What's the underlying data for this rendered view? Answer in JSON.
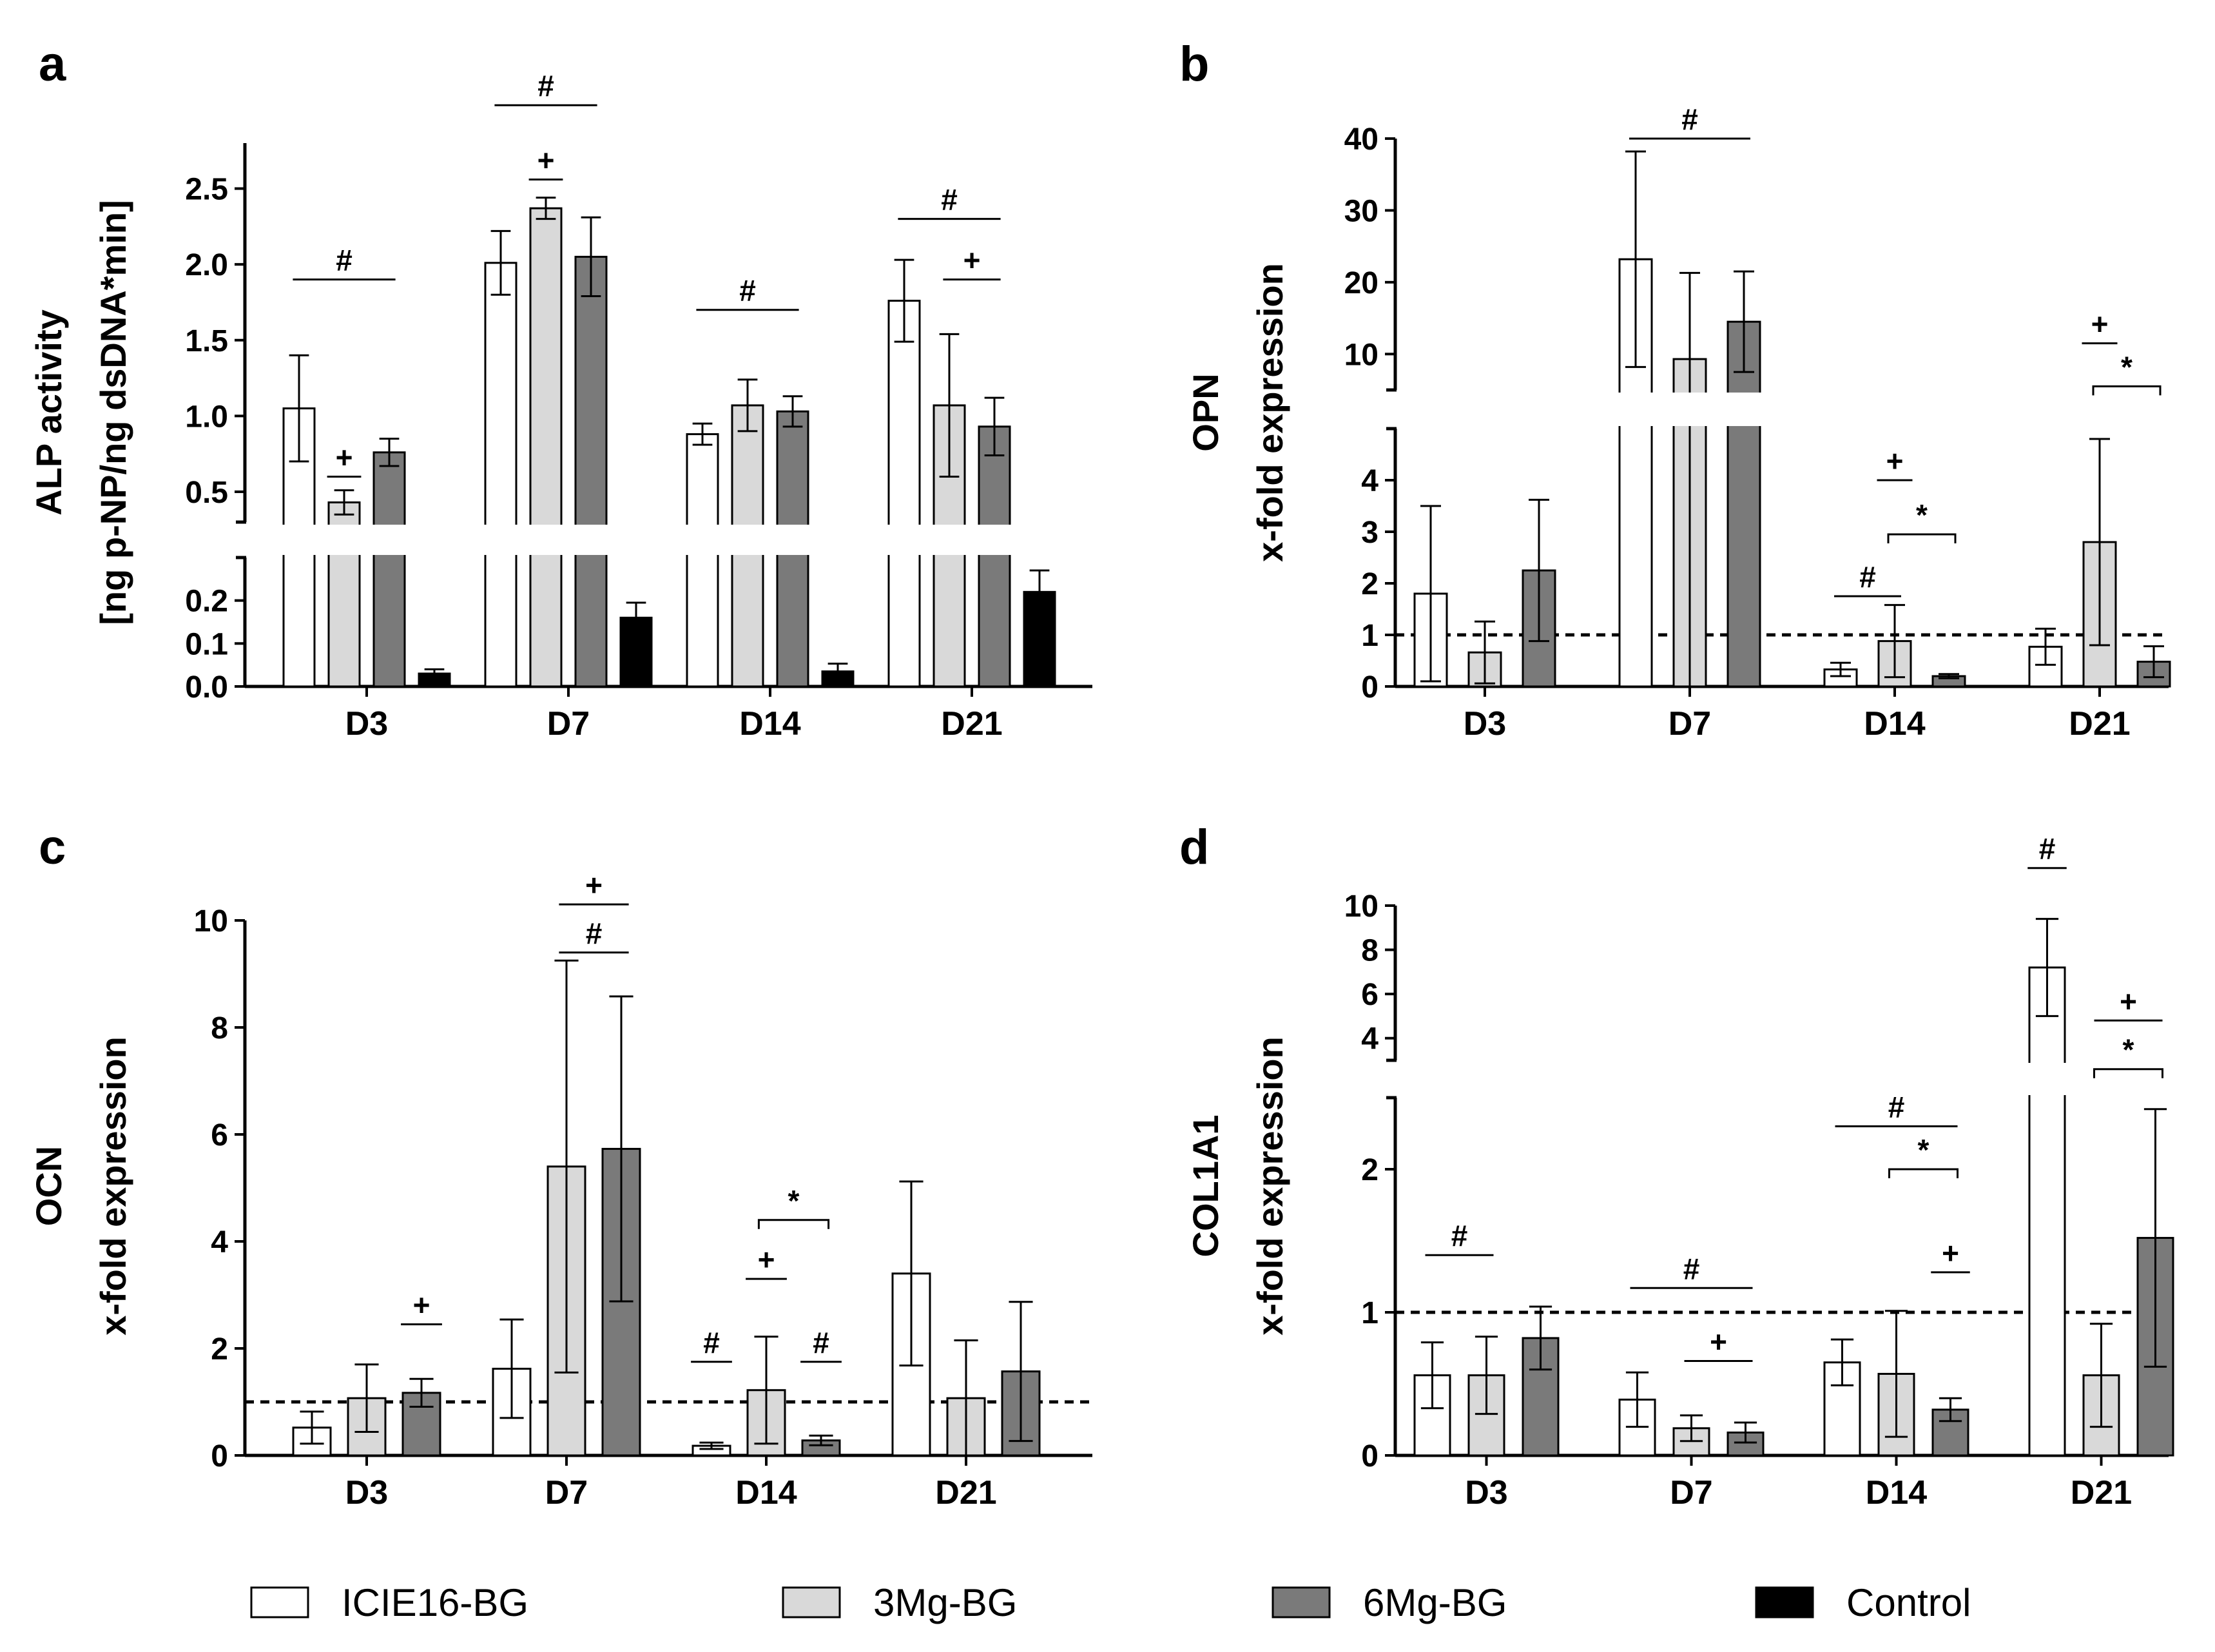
{
  "colors": {
    "ICIE16-BG": "#ffffff",
    "3Mg-BG": "#d9d9d9",
    "6Mg-BG": "#7a7a7a",
    "Control": "#000000"
  },
  "legend": [
    {
      "label": "ICIE16-BG",
      "color": "#ffffff"
    },
    {
      "label": "3Mg-BG",
      "color": "#d9d9d9"
    },
    {
      "label": "6Mg-BG",
      "color": "#7a7a7a"
    },
    {
      "label": "Control",
      "color": "#000000"
    }
  ],
  "chart_data": [
    {
      "panel": "a",
      "type": "bar",
      "ylabel_lines": [
        "ALP activity",
        "[ng p-NP/ng dsDNA*min]"
      ],
      "categories": [
        "D3",
        "D7",
        "D14",
        "D21"
      ],
      "series": [
        {
          "name": "ICIE16-BG",
          "values": [
            1.05,
            2.01,
            0.88,
            1.76
          ],
          "errors": [
            0.35,
            0.21,
            0.07,
            0.27
          ]
        },
        {
          "name": "3Mg-BG",
          "values": [
            0.43,
            2.37,
            1.07,
            1.07
          ],
          "errors": [
            0.08,
            0.07,
            0.17,
            0.47
          ]
        },
        {
          "name": "6Mg-BG",
          "values": [
            0.76,
            2.05,
            1.03,
            0.93
          ],
          "errors": [
            0.09,
            0.26,
            0.1,
            0.19
          ]
        },
        {
          "name": "Control",
          "values": [
            0.03,
            0.16,
            0.035,
            0.22
          ],
          "errors": [
            0.01,
            0.035,
            0.018,
            0.05
          ]
        }
      ],
      "y_break": {
        "lower_range": [
          0,
          0.3
        ],
        "upper_range": [
          0.3,
          2.8
        ]
      },
      "yticks_lower": [
        {
          "value": 0.0,
          "label": "0.0"
        },
        {
          "value": 0.1,
          "label": "0.1"
        },
        {
          "value": 0.2,
          "label": "0.2"
        }
      ],
      "yticks_upper": [
        {
          "value": 0.5,
          "label": "0.5"
        },
        {
          "value": 1.0,
          "label": "1.0"
        },
        {
          "value": 1.5,
          "label": "1.5"
        },
        {
          "value": 2.0,
          "label": "2.0"
        },
        {
          "value": 2.5,
          "label": "2.5"
        }
      ],
      "annotations": [
        {
          "symbol": "#",
          "cat": 0,
          "from": 0,
          "to": 2,
          "y": 1.9
        },
        {
          "symbol": "+",
          "cat": 0,
          "from": 1,
          "to": 1,
          "y": 0.6
        },
        {
          "symbol": "#",
          "cat": 1,
          "from": 0,
          "to": 2,
          "y": 3.05
        },
        {
          "symbol": "+",
          "cat": 1,
          "from": 1,
          "to": 1,
          "y": 2.56
        },
        {
          "symbol": "#",
          "cat": 2,
          "from": 0,
          "to": 2,
          "y": 1.7
        },
        {
          "symbol": "#",
          "cat": 3,
          "from": 0,
          "to": 2,
          "y": 2.3
        },
        {
          "symbol": "+",
          "cat": 3,
          "from": 1,
          "to": 2,
          "y": 1.9
        }
      ]
    },
    {
      "panel": "b",
      "type": "bar",
      "ylabel_lines": [
        "OPN",
        "x-fold expression"
      ],
      "categories": [
        "D3",
        "D7",
        "D14",
        "D21"
      ],
      "series": [
        {
          "name": "ICIE16-BG",
          "values": [
            1.8,
            23.2,
            0.33,
            0.77
          ],
          "errors": [
            1.7,
            15,
            0.13,
            0.35
          ]
        },
        {
          "name": "3Mg-BG",
          "values": [
            0.66,
            9.3,
            0.88,
            2.8
          ],
          "errors": [
            0.6,
            12,
            0.7,
            2.0
          ]
        },
        {
          "name": "6Mg-BG",
          "values": [
            2.25,
            14.5,
            0.2,
            0.48
          ],
          "errors": [
            1.37,
            7,
            0.04,
            0.3
          ]
        }
      ],
      "reference_line": 1,
      "y_break": {
        "lower_range": [
          0,
          5
        ],
        "upper_range": [
          5,
          40
        ]
      },
      "yticks_lower": [
        {
          "value": 0,
          "label": "0"
        },
        {
          "value": 1,
          "label": "1"
        },
        {
          "value": 2,
          "label": "2"
        },
        {
          "value": 3,
          "label": "3"
        },
        {
          "value": 4,
          "label": "4"
        }
      ],
      "yticks_upper": [
        {
          "value": 10,
          "label": "10"
        },
        {
          "value": 20,
          "label": "20"
        },
        {
          "value": 30,
          "label": "30"
        },
        {
          "value": 40,
          "label": "40"
        }
      ],
      "annotations": [
        {
          "symbol": "#",
          "cat": 1,
          "from": 0,
          "to": 2,
          "y": 40
        },
        {
          "symbol": "+",
          "cat": 2,
          "from": 1,
          "to": 1,
          "y": 4.0
        },
        {
          "symbol": "*",
          "cat": 2,
          "from": 1,
          "to": 2,
          "y": 2.95
        },
        {
          "symbol": "#",
          "cat": 2,
          "from": 0,
          "to": 1,
          "y": 1.75
        },
        {
          "symbol": "+",
          "cat": 3,
          "from": 1,
          "to": 1,
          "y": 11.5
        },
        {
          "symbol": "*",
          "cat": 3,
          "from": 1,
          "to": 2,
          "y": 5.5
        }
      ]
    },
    {
      "panel": "c",
      "type": "bar",
      "ylabel_lines": [
        "OCN",
        "x-fold expression"
      ],
      "categories": [
        "D3",
        "D7",
        "D14",
        "D21"
      ],
      "series": [
        {
          "name": "ICIE16-BG",
          "values": [
            0.52,
            1.62,
            0.18,
            3.4
          ],
          "errors": [
            0.3,
            0.92,
            0.06,
            1.72
          ]
        },
        {
          "name": "3Mg-BG",
          "values": [
            1.07,
            5.4,
            1.22,
            1.07
          ],
          "errors": [
            0.63,
            3.85,
            1.0,
            1.08
          ]
        },
        {
          "name": "6Mg-BG",
          "values": [
            1.17,
            5.73,
            0.28,
            1.57
          ],
          "errors": [
            0.26,
            2.85,
            0.09,
            1.3
          ]
        }
      ],
      "reference_line": 1,
      "ylim": [
        0,
        10
      ],
      "yticks": [
        {
          "value": 0,
          "label": "0"
        },
        {
          "value": 2,
          "label": "2"
        },
        {
          "value": 4,
          "label": "4"
        },
        {
          "value": 6,
          "label": "6"
        },
        {
          "value": 8,
          "label": "8"
        },
        {
          "value": 10,
          "label": "10"
        }
      ],
      "annotations": [
        {
          "symbol": "+",
          "cat": 0,
          "from": 2,
          "to": 2,
          "y": 2.45
        },
        {
          "symbol": "+",
          "cat": 1,
          "from": 1,
          "to": 2,
          "y": 10.3
        },
        {
          "symbol": "#",
          "cat": 1,
          "from": 1,
          "to": 2,
          "y": 9.4
        },
        {
          "symbol": "*",
          "cat": 2,
          "from": 1,
          "to": 2,
          "y": 4.4
        },
        {
          "symbol": "+",
          "cat": 2,
          "from": 1,
          "to": 1,
          "y": 3.3
        },
        {
          "symbol": "#",
          "cat": 2,
          "from": 0,
          "to": 0,
          "y": 1.75
        },
        {
          "symbol": "#",
          "cat": 2,
          "from": 2,
          "to": 2,
          "y": 1.75
        }
      ]
    },
    {
      "panel": "d",
      "type": "bar",
      "ylabel_lines": [
        "COL1A1",
        "x-fold expression"
      ],
      "categories": [
        "D3",
        "D7",
        "D14",
        "D21"
      ],
      "series": [
        {
          "name": "ICIE16-BG",
          "values": [
            0.56,
            0.39,
            0.65,
            7.2
          ],
          "errors": [
            0.23,
            0.19,
            0.16,
            2.2
          ]
        },
        {
          "name": "3Mg-BG",
          "values": [
            0.56,
            0.19,
            0.57,
            0.56
          ],
          "errors": [
            0.27,
            0.09,
            0.44,
            0.36
          ]
        },
        {
          "name": "6Mg-BG",
          "values": [
            0.82,
            0.16,
            0.32,
            1.52
          ],
          "errors": [
            0.22,
            0.07,
            0.08,
            0.9
          ]
        }
      ],
      "reference_line": 1,
      "y_break": {
        "lower_range": [
          0,
          2.5
        ],
        "upper_range": [
          3,
          10
        ]
      },
      "yticks_lower": [
        {
          "value": 0,
          "label": "0"
        },
        {
          "value": 1,
          "label": "1"
        },
        {
          "value": 2,
          "label": "2"
        }
      ],
      "yticks_upper": [
        {
          "value": 4,
          "label": "4"
        },
        {
          "value": 6,
          "label": "6"
        },
        {
          "value": 8,
          "label": "8"
        },
        {
          "value": 10,
          "label": "10"
        }
      ],
      "annotations": [
        {
          "symbol": "#",
          "cat": 0,
          "from": 0,
          "to": 1,
          "y": 1.4
        },
        {
          "symbol": "#",
          "cat": 1,
          "from": 0,
          "to": 2,
          "y": 1.17
        },
        {
          "symbol": "+",
          "cat": 1,
          "from": 1,
          "to": 2,
          "y": 0.66
        },
        {
          "symbol": "#",
          "cat": 2,
          "from": 0,
          "to": 2,
          "y": 2.3
        },
        {
          "symbol": "*",
          "cat": 2,
          "from": 1,
          "to": 2,
          "y": 2.0
        },
        {
          "symbol": "+",
          "cat": 2,
          "from": 2,
          "to": 2,
          "y": 1.28
        },
        {
          "symbol": "#",
          "cat": 3,
          "from": 0,
          "to": 0,
          "y": 11.7
        },
        {
          "symbol": "+",
          "cat": 3,
          "from": 1,
          "to": 2,
          "y": 4.8
        },
        {
          "symbol": "*",
          "cat": 3,
          "from": 1,
          "to": 2,
          "y": 2.6
        }
      ]
    }
  ]
}
